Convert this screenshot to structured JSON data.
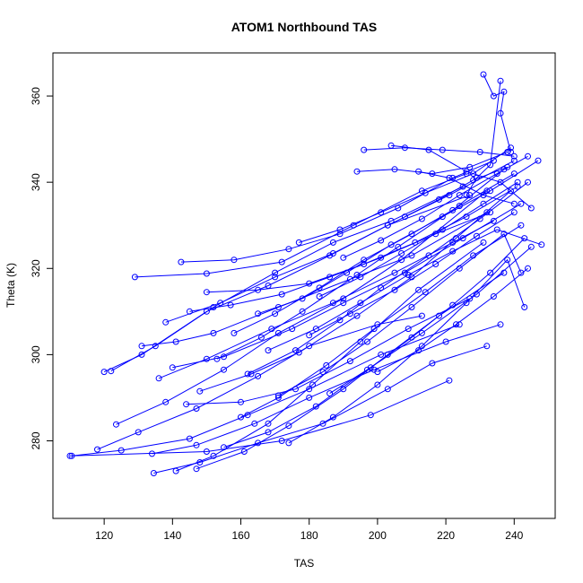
{
  "chart_data": {
    "type": "line",
    "title": "ATOM1 Northbound TAS",
    "xlabel": "TAS",
    "ylabel": "Theta (K)",
    "xlim": [
      105,
      252
    ],
    "ylim": [
      262,
      370
    ],
    "xticks": [
      120,
      140,
      160,
      180,
      200,
      220,
      240
    ],
    "yticks": [
      280,
      300,
      320,
      340,
      360
    ],
    "grid": false,
    "legend": "none",
    "color": "#0000ff",
    "marker": "open-circle",
    "series": [
      {
        "x": [
          110,
          150,
          172,
          198,
          221
        ],
        "y": [
          276.5,
          277.5,
          280,
          286,
          294
        ]
      },
      {
        "x": [
          110.5,
          125,
          145,
          162,
          180,
          201,
          224
        ],
        "y": [
          276.5,
          277.8,
          280.5,
          286,
          292,
          300,
          307
        ]
      },
      {
        "x": [
          118,
          130,
          147,
          165,
          180,
          200,
          213
        ],
        "y": [
          278,
          282,
          287.5,
          295,
          302,
          307,
          309
        ]
      },
      {
        "x": [
          120,
          131,
          150,
          168,
          186,
          203,
          227
        ],
        "y": [
          296,
          300,
          310,
          316,
          323,
          330,
          337
        ]
      },
      {
        "x": [
          122,
          135,
          152,
          170,
          187,
          204,
          225
        ],
        "y": [
          296.2,
          302,
          311,
          319,
          326,
          331,
          339
        ]
      },
      {
        "x": [
          123.5,
          138,
          155,
          171,
          190,
          207,
          232
        ],
        "y": [
          283.8,
          289,
          296.5,
          305,
          313,
          322,
          338
        ]
      },
      {
        "x": [
          129,
          150,
          172,
          193,
          213,
          226
        ],
        "y": [
          318,
          318.8,
          321.5,
          330,
          338,
          342
        ]
      },
      {
        "x": [
          131,
          141,
          152,
          171,
          192,
          210,
          232
        ],
        "y": [
          302,
          303,
          305,
          311,
          317.5,
          323,
          333
        ]
      },
      {
        "x": [
          134,
          147,
          164,
          180,
          199,
          220,
          236
        ],
        "y": [
          277,
          279,
          284,
          290,
          296.5,
          303,
          307
        ]
      },
      {
        "x": [
          134.5,
          148,
          165,
          184,
          203,
          216,
          232
        ],
        "y": [
          272.5,
          275,
          279.5,
          284,
          292,
          298,
          302
        ]
      },
      {
        "x": [
          136,
          150,
          169,
          187,
          205,
          222,
          234
        ],
        "y": [
          294.5,
          299,
          306,
          312,
          319,
          326,
          331
        ]
      },
      {
        "x": [
          138,
          154,
          170,
          187,
          203,
          221,
          240
        ],
        "y": [
          307.5,
          312,
          318,
          323.5,
          330,
          337,
          345
        ]
      },
      {
        "x": [
          140,
          155,
          175,
          190,
          208,
          225,
          242
        ],
        "y": [
          297,
          299.5,
          306,
          312,
          319,
          327,
          335
        ]
      },
      {
        "x": [
          141,
          152,
          168,
          181,
          195,
          212,
          231
        ],
        "y": [
          273,
          276.5,
          284,
          293,
          303,
          315,
          326
        ]
      },
      {
        "x": [
          142.5,
          158,
          174,
          189,
          206,
          222,
          234
        ],
        "y": [
          321.5,
          322,
          324.5,
          328,
          334,
          341,
          345
        ]
      },
      {
        "x": [
          144,
          160,
          176,
          192,
          209,
          227
        ],
        "y": [
          288.5,
          289,
          292,
          298.5,
          306,
          313
        ]
      },
      {
        "x": [
          145,
          157,
          172,
          186,
          201,
          217,
          233
        ],
        "y": [
          310,
          311.5,
          314,
          318,
          322.5,
          328,
          333
        ]
      },
      {
        "x": [
          147,
          161,
          174,
          190,
          203,
          218,
          237
        ],
        "y": [
          273.5,
          277.5,
          283.5,
          292,
          300,
          309,
          319
        ]
      },
      {
        "x": [
          148,
          163,
          177,
          194,
          210,
          223,
          239
        ],
        "y": [
          291.5,
          295.5,
          300.5,
          309,
          318,
          327,
          338
        ]
      },
      {
        "x": [
          150,
          165,
          180,
          196,
          211,
          226,
          241
        ],
        "y": [
          314.5,
          315,
          316.5,
          321,
          326,
          332,
          339
        ]
      },
      {
        "x": [
          153,
          166,
          178,
          194,
          206,
          222,
          237
        ],
        "y": [
          299,
          304,
          310,
          318.5,
          325,
          333.5,
          343
        ]
      },
      {
        "x": [
          155,
          168,
          182,
          197,
          213,
          229,
          245
        ],
        "y": [
          278.5,
          282,
          288,
          296.5,
          305,
          314,
          325
        ]
      },
      {
        "x": [
          158,
          170,
          183,
          196,
          210,
          224,
          240
        ],
        "y": [
          305,
          309.5,
          315.5,
          322,
          328,
          334.5,
          342
        ]
      },
      {
        "x": [
          160,
          171,
          185,
          199,
          214,
          228,
          242
        ],
        "y": [
          285.5,
          290,
          297.5,
          306,
          314.5,
          323,
          330
        ]
      },
      {
        "x": [
          162,
          176,
          189,
          201,
          215,
          230,
          244
        ],
        "y": [
          295.5,
          301,
          308,
          315.5,
          323,
          331.5,
          340
        ]
      },
      {
        "x": [
          165,
          178,
          191,
          204,
          219,
          233,
          247
        ],
        "y": [
          309.5,
          313,
          319,
          325.5,
          332,
          338,
          345
        ]
      },
      {
        "x": [
          168,
          182,
          195,
          209,
          222,
          235,
          248
        ],
        "y": [
          301,
          306,
          312,
          318.5,
          324,
          329,
          325.5
        ]
      },
      {
        "x": [
          171,
          184,
          197,
          210,
          224,
          237,
          242
        ],
        "y": [
          290.5,
          296,
          303,
          311,
          320,
          328,
          319
        ]
      },
      {
        "x": [
          174,
          187,
          200,
          213,
          226,
          238,
          243
        ],
        "y": [
          279.5,
          285.5,
          293,
          302,
          312,
          322,
          311
        ]
      },
      {
        "x": [
          177,
          189,
          201,
          214,
          228,
          239
        ],
        "y": [
          326,
          329,
          333,
          337.5,
          342,
          348
        ]
      },
      {
        "x": [
          180,
          192,
          205,
          217,
          229,
          240
        ],
        "y": [
          304.5,
          309.5,
          315,
          321,
          327.5,
          333
        ]
      },
      {
        "x": [
          183,
          195,
          207,
          219,
          231,
          241
        ],
        "y": [
          313.5,
          318,
          323.5,
          329,
          335,
          340
        ]
      },
      {
        "x": [
          186,
          198,
          210,
          222,
          233,
          243
        ],
        "y": [
          291,
          297,
          304,
          311.5,
          319,
          327
        ]
      },
      {
        "x": [
          190,
          201,
          213,
          224,
          235,
          244
        ],
        "y": [
          322.5,
          326.5,
          331.5,
          337,
          342,
          346
        ]
      },
      {
        "x": [
          194,
          205,
          216,
          227,
          238
        ],
        "y": [
          342.5,
          343,
          342,
          343.5,
          347
        ]
      },
      {
        "x": [
          196,
          208,
          219,
          230,
          240
        ],
        "y": [
          347.5,
          348,
          347.5,
          347,
          346
        ]
      },
      {
        "x": [
          200,
          212,
          223,
          234,
          244
        ],
        "y": [
          296,
          301,
          307,
          313.5,
          320
        ]
      },
      {
        "x": [
          204,
          215,
          226,
          236,
          245
        ],
        "y": [
          348.5,
          347.5,
          342.5,
          340,
          334
        ]
      },
      {
        "x": [
          208,
          218,
          228,
          238
        ],
        "y": [
          332,
          336,
          340.5,
          343.5
        ]
      },
      {
        "x": [
          212,
          221,
          231,
          240
        ],
        "y": [
          342.5,
          341,
          337,
          335
        ]
      },
      {
        "x": [
          231,
          234,
          237,
          236,
          239
        ],
        "y": [
          365,
          360,
          361,
          356,
          347
        ]
      },
      {
        "x": [
          226,
          229,
          233,
          236
        ],
        "y": [
          337,
          341,
          344,
          363.5
        ]
      }
    ]
  }
}
